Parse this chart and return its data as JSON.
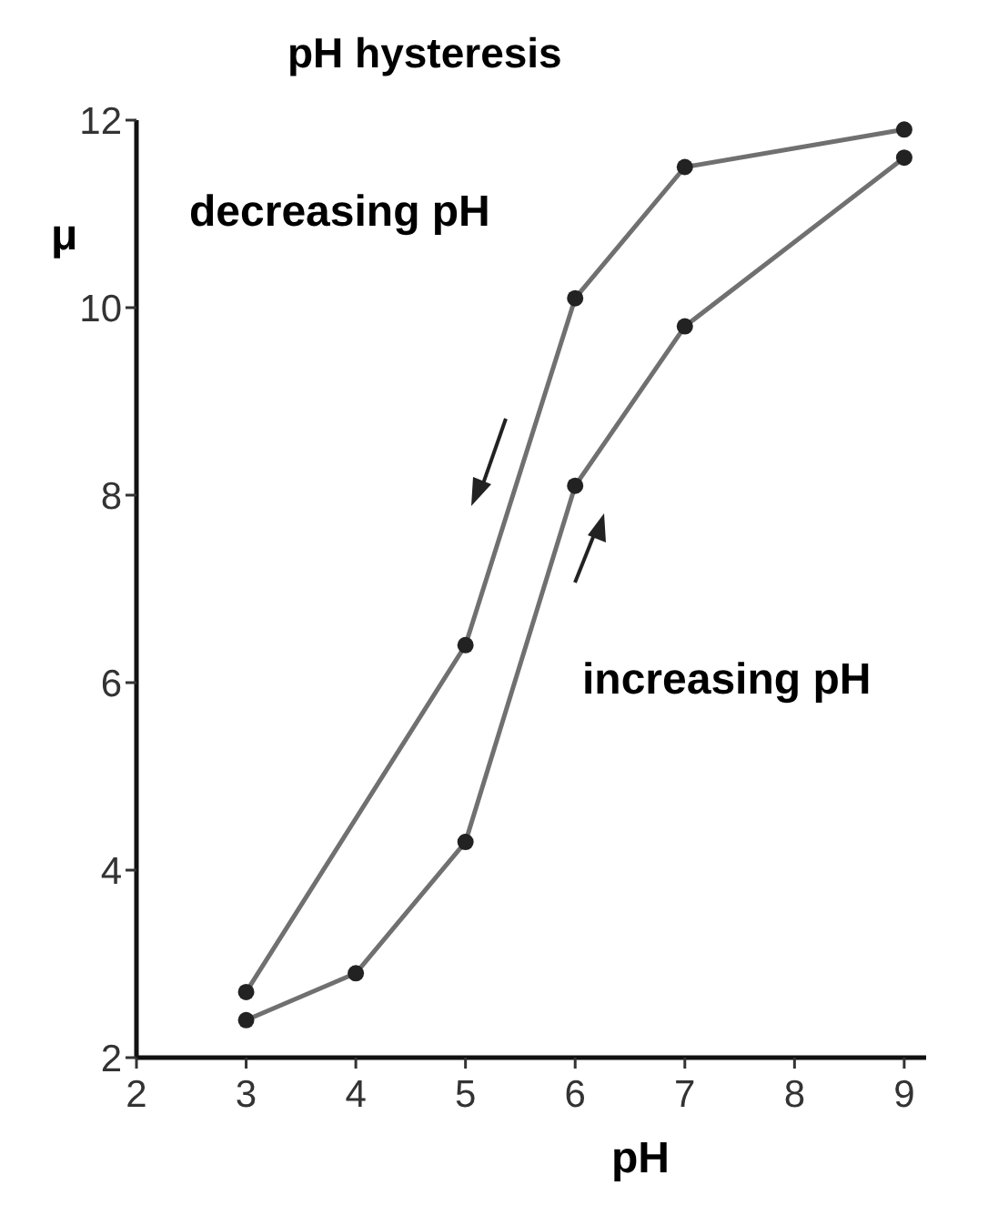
{
  "chart_data": {
    "type": "line",
    "title": "pH hysteresis",
    "xlabel": "pH",
    "ylabel": "μ",
    "xlim": [
      2,
      9.2
    ],
    "xticks": [
      2,
      3,
      4,
      5,
      6,
      7,
      8,
      9
    ],
    "ylim": [
      2,
      12
    ],
    "yticks": [
      2,
      4,
      6,
      8,
      10,
      12
    ],
    "grid": false,
    "marker": "circle",
    "line_style": "solid",
    "series": [
      {
        "name": "decreasing pH",
        "color": "#707070",
        "x": [
          3,
          5,
          6,
          7,
          9
        ],
        "values": [
          2.7,
          6.4,
          10.1,
          11.5,
          11.9
        ]
      },
      {
        "name": "increasing pH",
        "color": "#707070",
        "x": [
          3,
          4,
          5,
          6,
          7,
          9
        ],
        "values": [
          2.4,
          2.9,
          4.3,
          8.1,
          9.8,
          11.6
        ]
      }
    ]
  }
}
